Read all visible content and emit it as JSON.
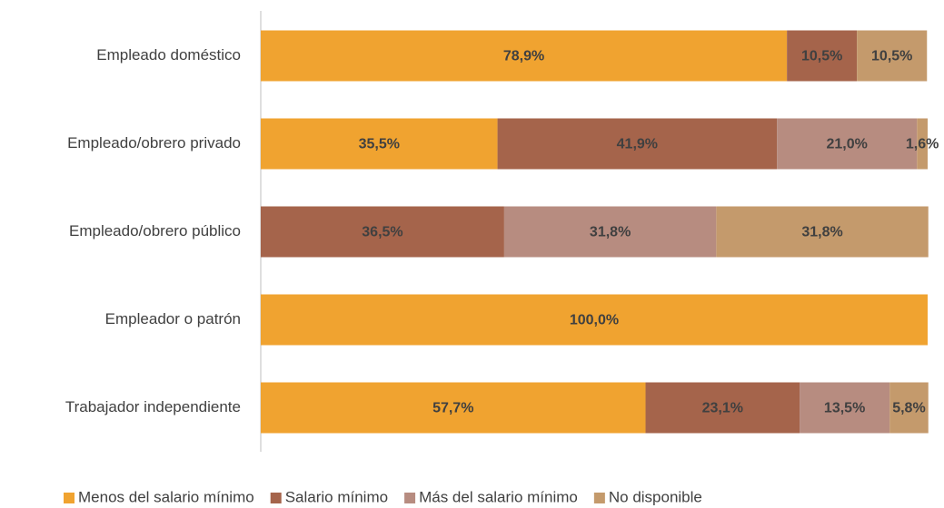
{
  "chart_data": {
    "type": "stacked-bar-horizontal",
    "categories": [
      "Empleado doméstico",
      "Empleado/obrero privado",
      "Empleado/obrero público",
      "Empleador o patrón",
      "Trabajador independiente"
    ],
    "xlim": [
      0,
      100
    ],
    "series": [
      {
        "name": "Menos del salario mínimo",
        "color": "#f0a330",
        "values": [
          78.9,
          35.5,
          null,
          100,
          57.7
        ],
        "value_labels": [
          "78,9%",
          "35,5%",
          null,
          "100,0%",
          "57,7%"
        ]
      },
      {
        "name": "Salario mínimo",
        "color": "#a5644b",
        "values": [
          10.5,
          41.9,
          36.5,
          null,
          23.1
        ],
        "value_labels": [
          "10,5%",
          "41,9%",
          "36,5%",
          null,
          "23,1%"
        ]
      },
      {
        "name": "Más del salario mínimo",
        "color": "#b78c80",
        "values": [
          null,
          21.0,
          31.8,
          null,
          13.5
        ],
        "value_labels": [
          null,
          "21,0%",
          "31,8%",
          null,
          "13,5%"
        ]
      },
      {
        "name": "No disponible",
        "color": "#c49a6c",
        "values": [
          10.5,
          1.6,
          31.8,
          null,
          5.8
        ],
        "value_labels": [
          "10,5%",
          "1,6%",
          "31,8%",
          null,
          "5,8%"
        ]
      }
    ],
    "legend": "bottom"
  }
}
